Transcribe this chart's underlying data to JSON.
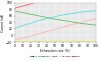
{
  "title": "",
  "xlabel": "Exhaustion rate (%)",
  "ylabel": "Current (nA)",
  "xlim": [
    0,
    100
  ],
  "ylim": [
    -20,
    100
  ],
  "background_color": "#ffffff",
  "plot_bg_color": "#e8e8e8",
  "grid_color": "#ffffff",
  "x": [
    0,
    5,
    10,
    15,
    20,
    25,
    30,
    35,
    40,
    45,
    50,
    55,
    60,
    65,
    70,
    75,
    80,
    85,
    90,
    95,
    100
  ],
  "lines": [
    {
      "name": "IBeta",
      "color": "#44bb44",
      "y": [
        75,
        73,
        70,
        68,
        65,
        63,
        60,
        58,
        55,
        53,
        50,
        48,
        46,
        44,
        42,
        40,
        38,
        36,
        35,
        33,
        32
      ]
    },
    {
      "name": "IGamma",
      "color": "#44dddd",
      "y": [
        22,
        26,
        30,
        34,
        38,
        42,
        46,
        49,
        52,
        55,
        58,
        61,
        63,
        65,
        67,
        69,
        71,
        73,
        74,
        75,
        76
      ]
    },
    {
      "name": "IDrift",
      "color": "#ffaaaa",
      "y": [
        -14,
        -11,
        -8,
        -5,
        -2,
        2,
        5,
        9,
        12,
        16,
        19,
        23,
        26,
        29,
        33,
        36,
        39,
        42,
        45,
        48,
        51
      ]
    },
    {
      "name": "IResidual",
      "color": "#eeee44",
      "y": [
        -16,
        -16,
        -16,
        -16,
        -16,
        -16,
        -16,
        -16,
        -16,
        -16,
        -16,
        -16,
        -16,
        -16,
        -16,
        -16,
        -16,
        -16,
        -16,
        -16,
        -16
      ]
    },
    {
      "name": "ITotal",
      "color": "#ff4444",
      "y": [
        83,
        87,
        90,
        93,
        97,
        101,
        104,
        107,
        110,
        113,
        116,
        119,
        121,
        123,
        125,
        127,
        129,
        131,
        132,
        133,
        134
      ]
    }
  ],
  "xticks": [
    0,
    10,
    20,
    30,
    40,
    50,
    60,
    70,
    80,
    90,
    100
  ],
  "yticks": [
    -20,
    0,
    20,
    40,
    60,
    80,
    100
  ],
  "legend_labels": [
    "IBeta",
    "IGamma",
    "IDrift",
    "IResidual",
    "ITotal"
  ],
  "legend_colors": [
    "#44bb44",
    "#44dddd",
    "#ffaaaa",
    "#eeee44",
    "#ff4444"
  ],
  "tick_labelsize": 2.2,
  "label_fontsize": 2.2,
  "legend_fontsize": 1.6,
  "linewidth": 0.5
}
